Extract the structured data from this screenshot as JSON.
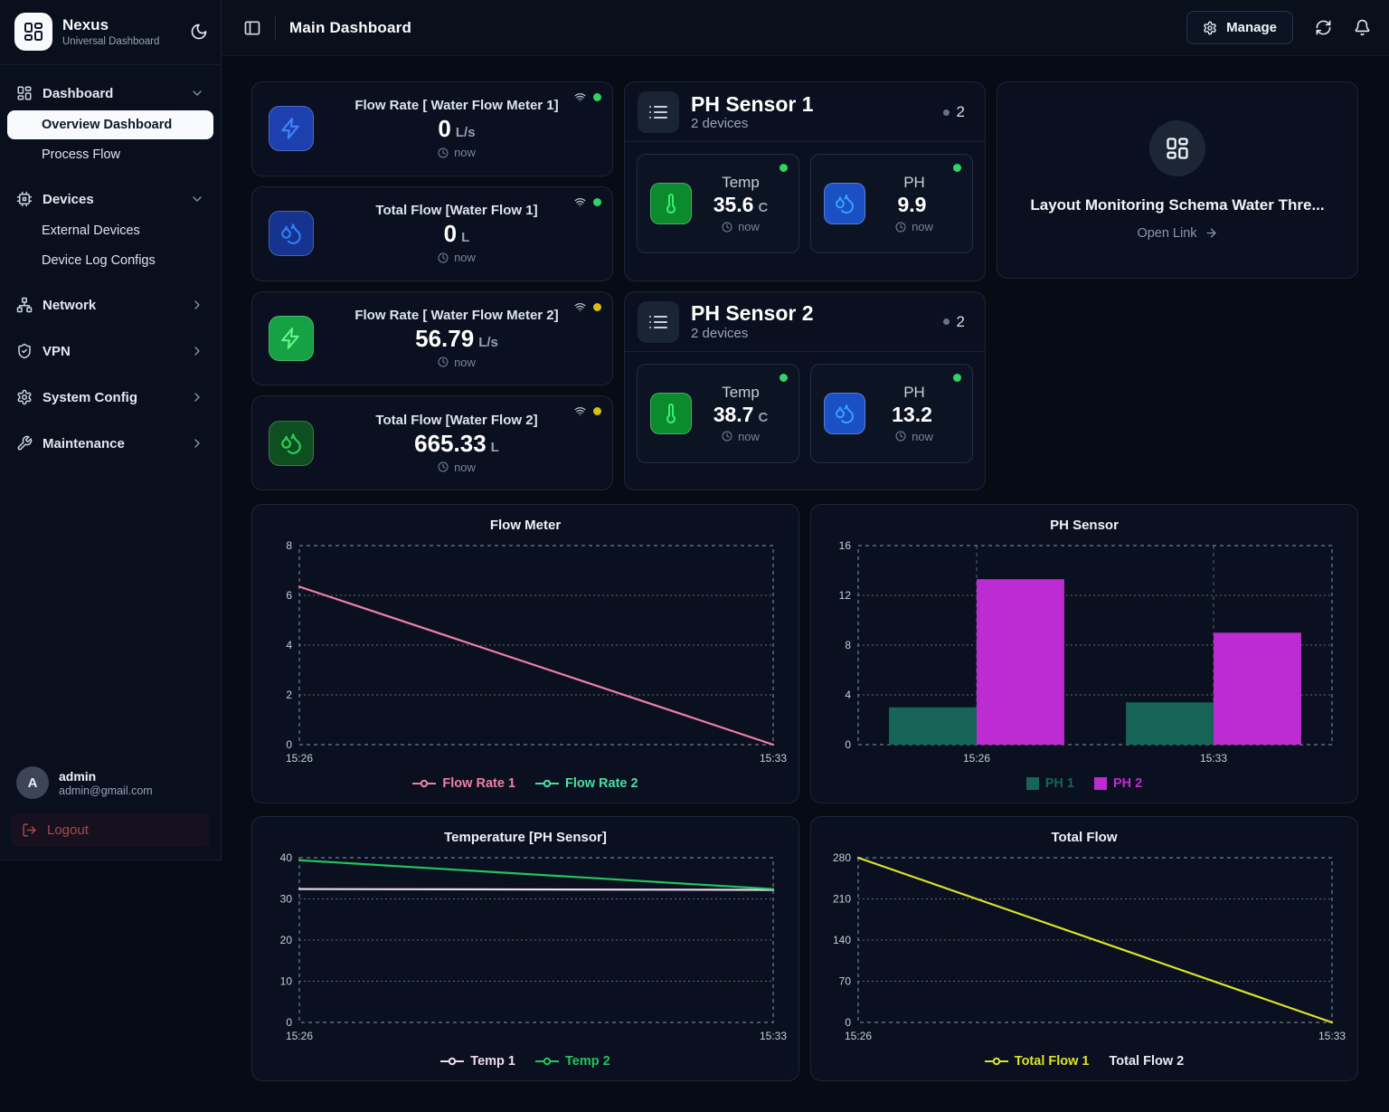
{
  "sidebar": {
    "brand": {
      "name": "Nexus",
      "subtitle": "Universal Dashboard"
    },
    "sections": [
      {
        "label": "Dashboard",
        "children": [
          "Overview Dashboard",
          "Process Flow"
        ],
        "active_child": "Overview Dashboard"
      },
      {
        "label": "Devices",
        "children": [
          "External Devices",
          "Device Log Configs"
        ]
      },
      {
        "label": "Network",
        "children": []
      },
      {
        "label": "VPN",
        "children": []
      },
      {
        "label": "System Config",
        "children": []
      },
      {
        "label": "Maintenance",
        "children": []
      }
    ],
    "user": {
      "name": "admin",
      "email": "admin@gmail.com",
      "avatar_letter": "A"
    },
    "logout_label": "Logout"
  },
  "topbar": {
    "title": "Main Dashboard",
    "manage_label": "Manage"
  },
  "stat_cards": [
    {
      "title": "Flow Rate [ Water Flow Meter 1]",
      "value": "0",
      "unit": "L/s",
      "time": "now",
      "icon": "bolt-icon",
      "icon_bg": "#1e40af",
      "icon_color": "#3f83f8",
      "status_color": "#2fd465"
    },
    {
      "title": "Total Flow [Water Flow 1]",
      "value": "0",
      "unit": "L",
      "time": "now",
      "icon": "droplets-icon",
      "icon_bg": "#16338f",
      "icon_color": "#2f7ff5",
      "status_color": "#2fd465"
    },
    {
      "title": "Flow Rate [ Water Flow Meter 2]",
      "value": "56.79",
      "unit": "L/s",
      "time": "now",
      "icon": "bolt-icon",
      "icon_bg": "#15a144",
      "icon_color": "#63f58b",
      "status_color": "#d6be12"
    },
    {
      "title": "Total Flow [Water Flow 2]",
      "value": "665.33",
      "unit": "L",
      "time": "now",
      "icon": "droplets-icon",
      "icon_bg": "#0d4f20",
      "icon_color": "#27d457",
      "status_color": "#d6be12"
    }
  ],
  "sensor_groups": [
    {
      "title": "PH Sensor 1",
      "subtitle": "2 devices",
      "count": "2",
      "devices": [
        {
          "label": "Temp",
          "value": "35.6",
          "unit": "C",
          "time": "now",
          "icon": "thermometer-icon",
          "icon_bg": "#0b8a2e",
          "icon_color": "#39f06e",
          "status_color": "#2fd465"
        },
        {
          "label": "PH",
          "value": "9.9",
          "unit": "",
          "time": "now",
          "icon": "droplets-icon",
          "icon_bg": "#1b4fc4",
          "icon_color": "#36a3f7",
          "status_color": "#2fd465"
        }
      ]
    },
    {
      "title": "PH Sensor 2",
      "subtitle": "2 devices",
      "count": "2",
      "devices": [
        {
          "label": "Temp",
          "value": "38.7",
          "unit": "C",
          "time": "now",
          "icon": "thermometer-icon",
          "icon_bg": "#0b8a2e",
          "icon_color": "#39f06e",
          "status_color": "#2fd465"
        },
        {
          "label": "PH",
          "value": "13.2",
          "unit": "",
          "time": "now",
          "icon": "droplets-icon",
          "icon_bg": "#1b4fc4",
          "icon_color": "#36a3f7",
          "status_color": "#2fd465"
        }
      ]
    }
  ],
  "link_card": {
    "title": "Layout Monitoring Schema Water Thre...",
    "action_label": "Open Link"
  },
  "chart_data": [
    {
      "type": "line",
      "title": "Flow Meter",
      "x_labels": [
        "15:26",
        "15:33"
      ],
      "ylim": [
        0,
        8
      ],
      "yticks": [
        0,
        2,
        4,
        6,
        8
      ],
      "grid": "dotted",
      "legend_position": "bottom",
      "series": [
        {
          "name": "Flow Rate 1",
          "color": "#ee80a8",
          "values": [
            6.35,
            0
          ]
        },
        {
          "name": "Flow Rate 2",
          "color": "#49dfa4",
          "values": []
        }
      ]
    },
    {
      "type": "bar",
      "title": "PH Sensor",
      "x_labels": [
        "15:26",
        "15:33"
      ],
      "ylim": [
        0,
        16
      ],
      "yticks": [
        0,
        4,
        8,
        12,
        16
      ],
      "grid": "dotted",
      "legend_position": "bottom",
      "series": [
        {
          "name": "PH 1",
          "color": "#166458",
          "values": [
            3,
            3.4
          ]
        },
        {
          "name": "PH 2",
          "color": "#bd2cd2",
          "values": [
            13.3,
            9
          ]
        }
      ]
    },
    {
      "type": "line",
      "title": "Temperature [PH Sensor]",
      "x_labels": [
        "15:26",
        "15:33"
      ],
      "ylim": [
        0,
        40
      ],
      "yticks": [
        0,
        10,
        20,
        30,
        40
      ],
      "grid": "dotted",
      "legend_position": "bottom",
      "series": [
        {
          "name": "Temp 1",
          "color": "#ecd9f0",
          "values": [
            32.4,
            32.2
          ]
        },
        {
          "name": "Temp 2",
          "color": "#23c45e",
          "values": [
            39.4,
            32.4
          ]
        }
      ]
    },
    {
      "type": "line",
      "title": "Total Flow",
      "x_labels": [
        "15:26",
        "15:33"
      ],
      "ylim": [
        0,
        280
      ],
      "yticks": [
        0,
        70,
        140,
        210,
        280
      ],
      "grid": "dotted",
      "legend_position": "bottom",
      "series": [
        {
          "name": "Total Flow 1",
          "color": "#dde329",
          "values": [
            280,
            0
          ]
        },
        {
          "name": "Total Flow 2",
          "color": "#dde329",
          "values": [],
          "no_marker": true,
          "legend_color": "#e6ebf2"
        }
      ]
    }
  ]
}
